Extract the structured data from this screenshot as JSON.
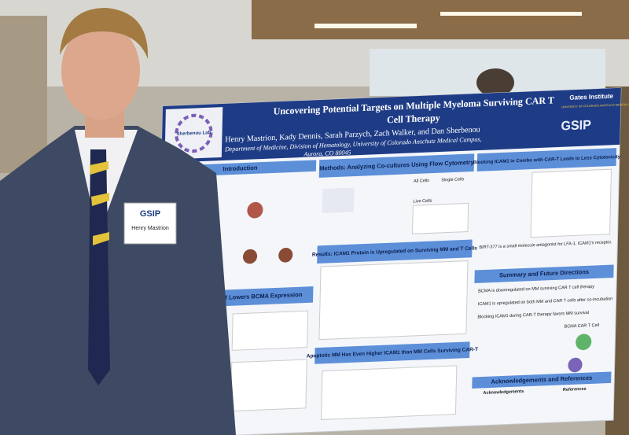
{
  "poster": {
    "logo": "Sherbenou Lab",
    "institute": "Gates Institute",
    "university": "UNIVERSITY OF COLORADO ANSCHUTZ MEDICAL CAMPUS",
    "program": "GSIP",
    "title_line1": "Uncovering Potential Targets on Multiple Myeloma Surviving CAR T",
    "title_line2": "Cell Therapy",
    "authors": "Henry Mastrion, Kady Dennis, Sarah Parzych, Zach Walker, and Dan Sherbenou",
    "affiliation_line1": "Department of Medicine, Division of Hematology, University of Colorado Anschutz Medical Campus,",
    "affiliation_line2": "Aurora, CO 80045",
    "sections": {
      "introduction": "Introduction",
      "methods": "Methods: Analyzing Co-cultures Using Flow Cytometry",
      "blocking": "Blocking ICAM1 in Combo with CAR-T Leads to Less Cytotoxicity",
      "results": "Results: ICAM1 Protein is Upregulated on Surviving MM and T Cells",
      "summary": "Summary and Future Directions",
      "data": "Data: Surviving MM Lowers BCMA Expression",
      "apoptotic": "Apoptotic MM Has Even Higher ICAM1 than MM Cells Surviving CAR-T",
      "acknowledgements_references": "Acknowledgements and References",
      "acknowledgements": "Acknowledgements",
      "references": "References"
    },
    "notes": {
      "birt": "BIRT-377 is a small molecule antagonist for LFA-1, ICAM1's receptor.",
      "summary1": "BCMA is downregulated on MM surviving CAR T cell therapy",
      "summary2": "ICAM1 is upregulated on both MM and CAR T cells after co-incubation",
      "summary3": "Blocking ICAM1 during CAR-T therapy favors MM survival",
      "methods_all": "All Cells",
      "methods_single": "Single Cells",
      "methods_live": "Live Cells",
      "chart_label": "BCMA CAR T Cell"
    }
  },
  "badge": {
    "program": "GSIP",
    "name": "Henry Mastrion"
  }
}
